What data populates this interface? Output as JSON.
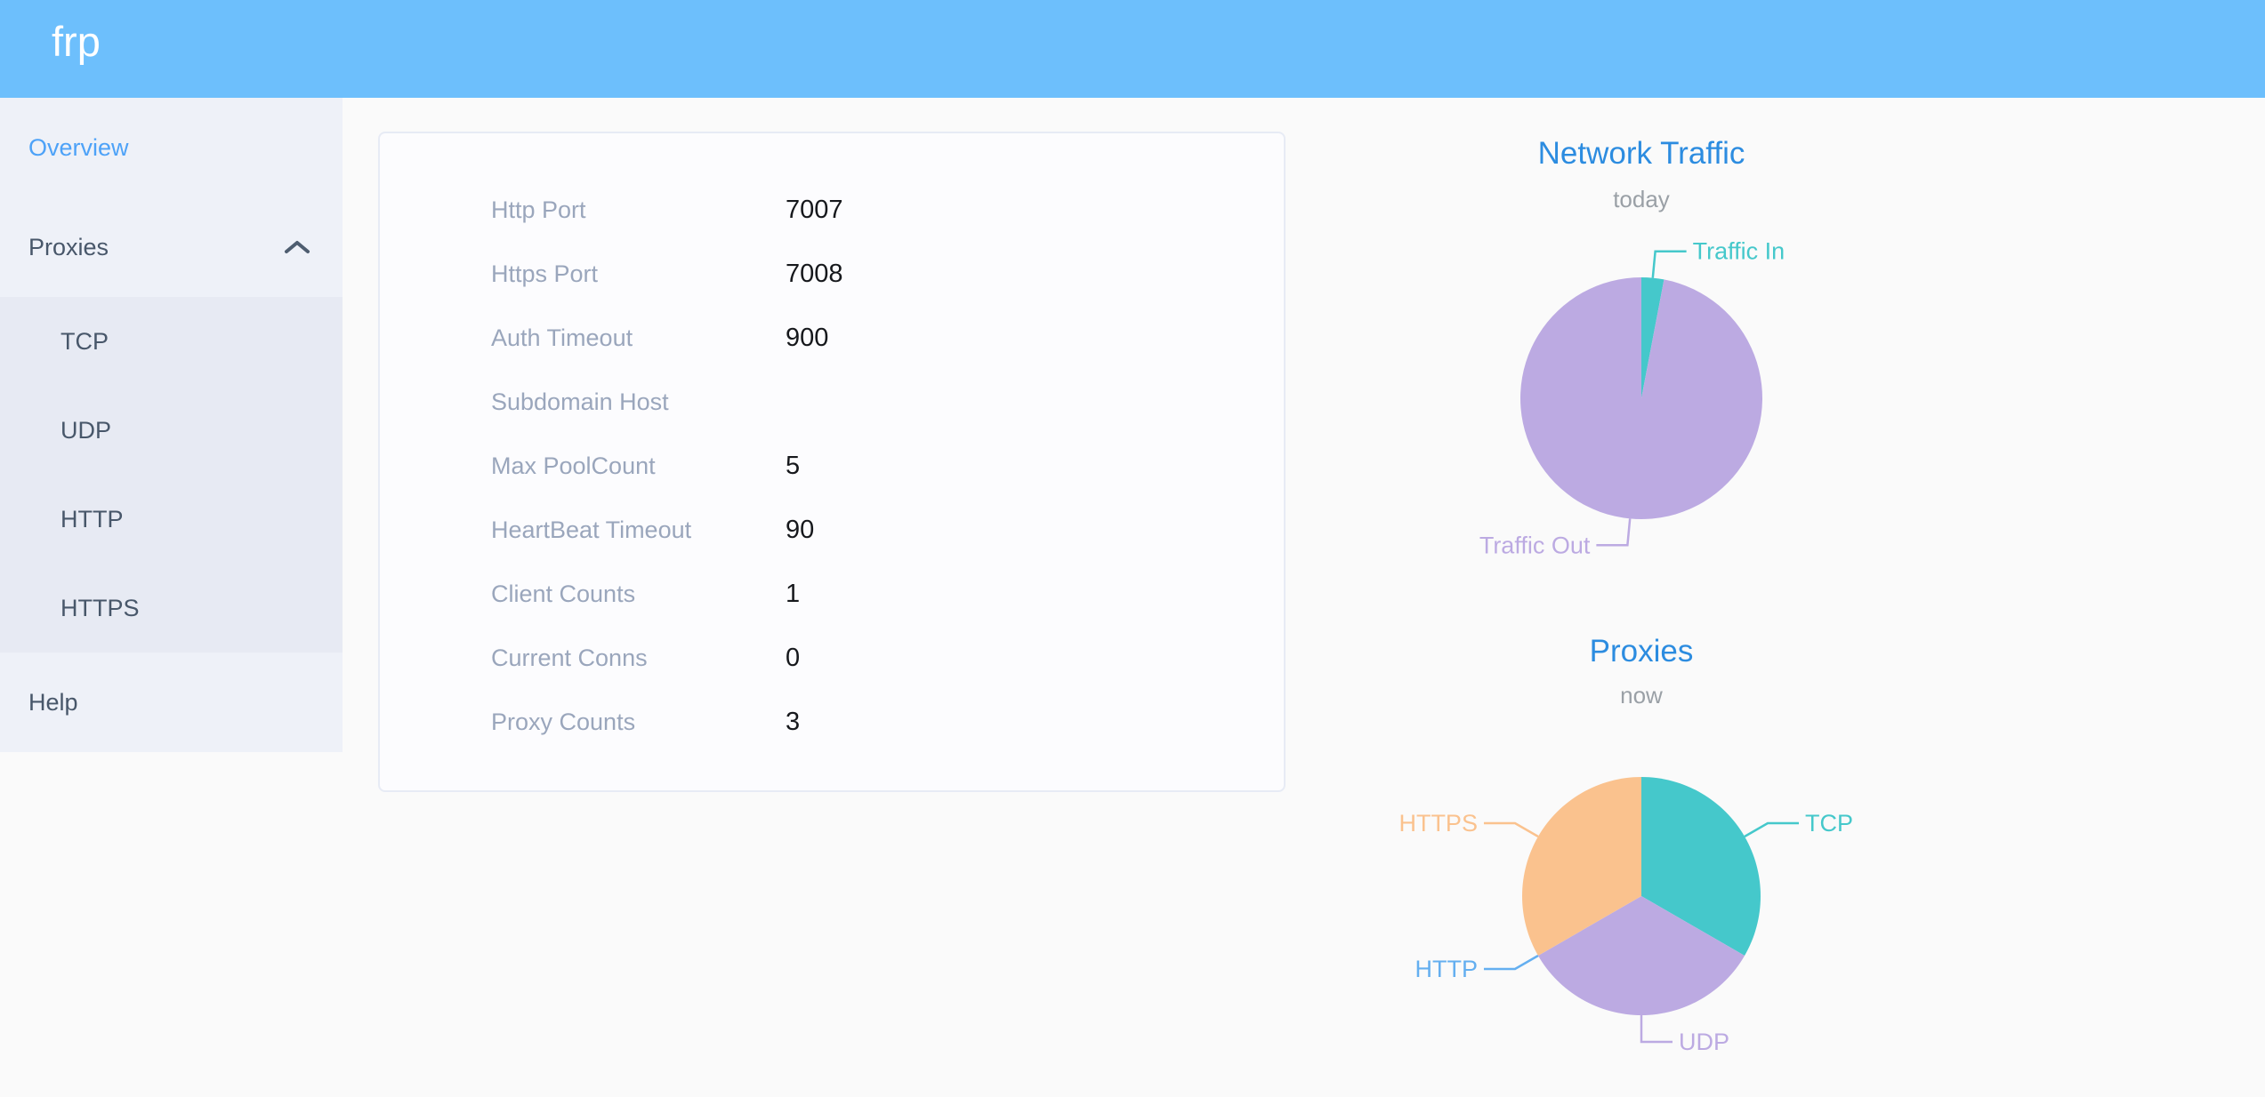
{
  "header": {
    "logo": "frp"
  },
  "sidebar": {
    "items": [
      {
        "label": "Overview",
        "active": true
      },
      {
        "label": "Proxies",
        "expanded": true,
        "children": [
          "TCP",
          "UDP",
          "HTTP",
          "HTTPS"
        ]
      },
      {
        "label": "Help"
      }
    ]
  },
  "server_info": {
    "rows": [
      {
        "label": "Http Port",
        "value": "7007"
      },
      {
        "label": "Https Port",
        "value": "7008"
      },
      {
        "label": "Auth Timeout",
        "value": "900"
      },
      {
        "label": "Subdomain Host",
        "value": ""
      },
      {
        "label": "Max PoolCount",
        "value": "5"
      },
      {
        "label": "HeartBeat Timeout",
        "value": "90"
      },
      {
        "label": "Client Counts",
        "value": "1"
      },
      {
        "label": "Current Conns",
        "value": "0"
      },
      {
        "label": "Proxy Counts",
        "value": "3"
      }
    ]
  },
  "chart_data": [
    {
      "type": "pie",
      "title": "Network Traffic",
      "subtitle": "today",
      "legend_position": "callout-labels",
      "unit": "% of total traffic (estimated from slice angles)",
      "series": [
        {
          "name": "Traffic In",
          "value": 3,
          "color": "#45c8cb"
        },
        {
          "name": "Traffic Out",
          "value": 97,
          "color": "#bcaae2"
        }
      ]
    },
    {
      "type": "pie",
      "title": "Proxies",
      "subtitle": "now",
      "legend_position": "callout-labels",
      "unit": "proxy count (total Proxy Counts = 3)",
      "series": [
        {
          "name": "TCP",
          "value": 1,
          "color": "#45c8cb"
        },
        {
          "name": "UDP",
          "value": 1,
          "color": "#bcaae2"
        },
        {
          "name": "HTTP",
          "value": 0,
          "color": "#64aff0"
        },
        {
          "name": "HTTPS",
          "value": 1,
          "color": "#fac28e"
        }
      ]
    }
  ],
  "colors": {
    "header_bg": "#6dbffc",
    "page_bg": "#fafafa",
    "sidebar_bg": "#eef1f8",
    "submenu_bg": "#e7eaf3",
    "active_menu": "#4da2f8",
    "menu_text": "#48576a",
    "chart_title": "#2c8ce0",
    "label_gray": "#9aa6bc"
  }
}
